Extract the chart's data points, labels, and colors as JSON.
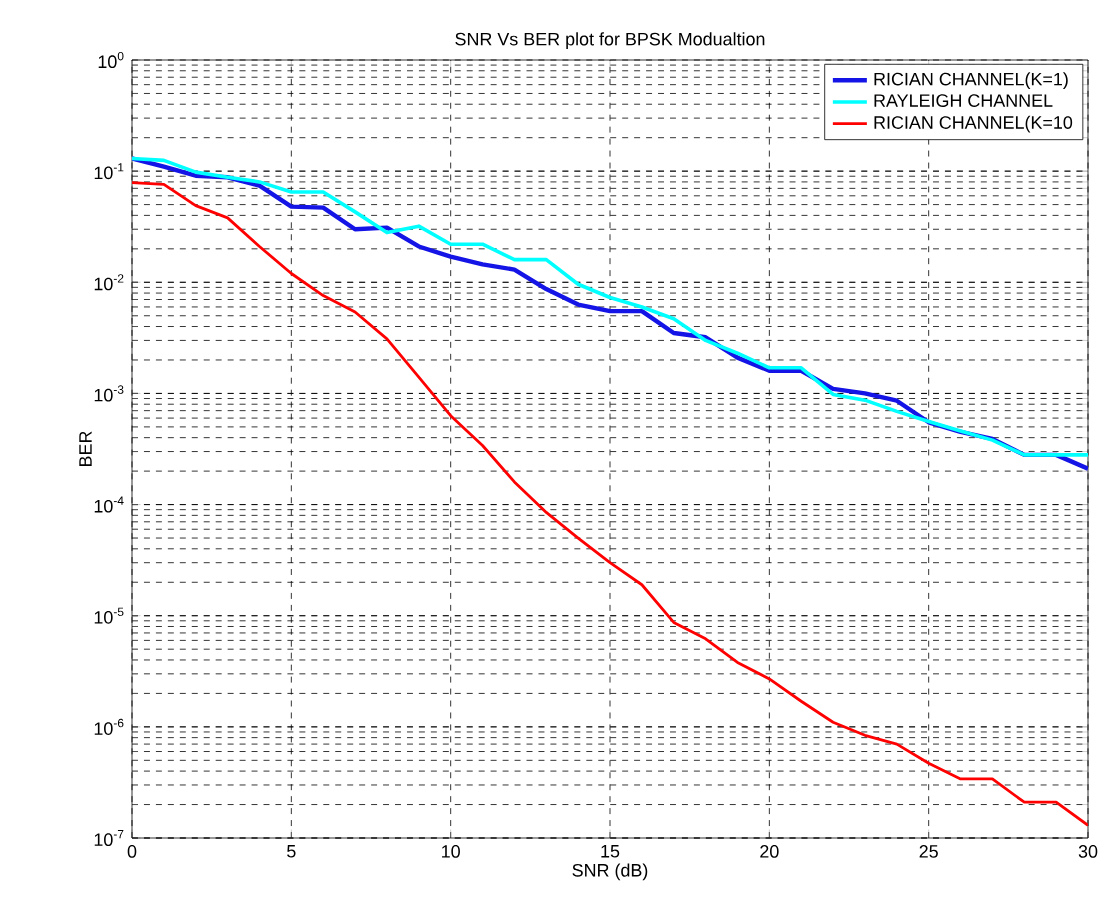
{
  "chart_data": {
    "type": "line",
    "title": "SNR Vs BER plot for BPSK Modualtion",
    "xlabel": "SNR (dB)",
    "ylabel": "BER",
    "log": "y",
    "grid": true,
    "legend": "top right",
    "xlim": [
      0,
      30
    ],
    "ylim": [
      1e-07,
      1
    ],
    "xticks": [
      0,
      5,
      10,
      15,
      20,
      25,
      30
    ],
    "yticks": [
      {
        "value": 1e-07,
        "label": "10$^{-7}$"
      },
      {
        "value": 1e-06,
        "label": "10$^{-6}$"
      },
      {
        "value": 1e-05,
        "label": "10$^{-5}$"
      },
      {
        "value": 0.0001,
        "label": "10$^{-4}$"
      },
      {
        "value": 0.001,
        "label": "10$^{-3}$"
      },
      {
        "value": 0.01,
        "label": "10$^{-2}$"
      },
      {
        "value": 0.1,
        "label": "10$^{-1}$"
      },
      {
        "value": 1,
        "label": "10$^{0}$"
      }
    ],
    "x": [
      0,
      1,
      2,
      3,
      4,
      5,
      6,
      7,
      8,
      9,
      10,
      11,
      12,
      13,
      14,
      15,
      16,
      17,
      18,
      19,
      20,
      21,
      22,
      23,
      24,
      25,
      26,
      27,
      28,
      29,
      30
    ],
    "series": [
      {
        "name": "RICIAN CHANNEL(K=1)",
        "color": "#1414e6",
        "values": [
          0.13,
          0.11,
          0.091,
          0.088,
          0.074,
          0.048,
          0.047,
          0.03,
          0.031,
          0.021,
          0.017,
          0.0145,
          0.013,
          0.0087,
          0.0063,
          0.0055,
          0.0055,
          0.0035,
          0.0032,
          0.0021,
          0.0016,
          0.0016,
          0.0011,
          0.001,
          0.00086,
          0.00055,
          0.00045,
          0.00039,
          0.00028,
          0.00028,
          0.00021
        ]
      },
      {
        "name": "RAYLEIGH CHANNEL",
        "color": "#00ffff",
        "values": [
          0.13,
          0.125,
          0.098,
          0.088,
          0.08,
          0.065,
          0.065,
          0.043,
          0.028,
          0.032,
          0.022,
          0.022,
          0.016,
          0.016,
          0.0096,
          0.0073,
          0.006,
          0.0047,
          0.003,
          0.0023,
          0.0017,
          0.0017,
          0.00098,
          0.00087,
          0.00069,
          0.00056,
          0.00046,
          0.00038,
          0.00028,
          0.00028,
          0.00028
        ]
      },
      {
        "name": "RICIAN CHANNEL(K=10",
        "color": "#ff0000",
        "values": [
          0.079,
          0.076,
          0.049,
          0.038,
          0.021,
          0.012,
          0.0076,
          0.0054,
          0.0031,
          0.0014,
          0.00063,
          0.00034,
          0.00016,
          8.5e-05,
          5e-05,
          3e-05,
          1.9e-05,
          8.7e-06,
          6.2e-06,
          3.8e-06,
          2.7e-06,
          1.7e-06,
          1.1e-06,
          8.4e-07,
          7e-07,
          4.7e-07,
          3.4e-07,
          3.4e-07,
          2.1e-07,
          2.1e-07,
          1.3e-07
        ]
      }
    ]
  }
}
